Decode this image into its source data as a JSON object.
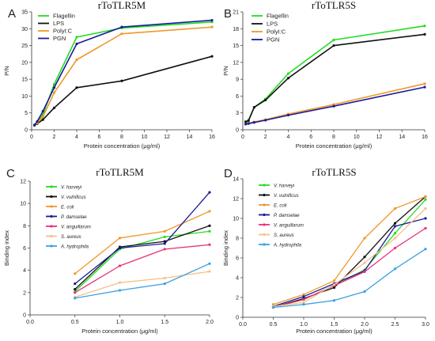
{
  "chart_data": [
    {
      "type": "line",
      "panel": "A",
      "title": "rToTLR5M",
      "xlabel": "Protein concentration (μg/ml)",
      "ylabel": "P/N",
      "xlim": [
        0,
        16
      ],
      "ylim": [
        0,
        35
      ],
      "xticks": [
        0,
        2,
        4,
        6,
        8,
        10,
        12,
        14,
        16
      ],
      "yticks": [
        0,
        5,
        10,
        15,
        20,
        25,
        30,
        35
      ],
      "legend_position": "top-left",
      "colors": {
        "Flagellin": "#22dd22",
        "LPS": "#111111",
        "PolyI:C": "#f0982a",
        "PGN": "#1a1a9a"
      },
      "x": [
        0.25,
        0.5,
        1,
        2,
        4,
        8,
        16
      ],
      "series": [
        {
          "name": "Flagellin",
          "values": [
            1.5,
            2.3,
            4.5,
            13.5,
            27.5,
            30.2,
            32.0
          ]
        },
        {
          "name": "LPS",
          "values": [
            1.3,
            1.8,
            3.0,
            6.5,
            12.5,
            14.5,
            21.8
          ]
        },
        {
          "name": "PolyI:C",
          "values": [
            1.4,
            2.0,
            3.8,
            11.0,
            20.8,
            28.5,
            30.5
          ]
        },
        {
          "name": "PGN",
          "values": [
            1.4,
            2.5,
            5.5,
            12.5,
            25.5,
            30.5,
            32.5
          ]
        }
      ]
    },
    {
      "type": "line",
      "panel": "B",
      "title": "rToTLR5S",
      "xlabel": "Protein concentration (μg/ml)",
      "ylabel": "P/N",
      "xlim": [
        0,
        16
      ],
      "ylim": [
        0,
        21
      ],
      "xticks": [
        0,
        2,
        4,
        6,
        8,
        10,
        12,
        14,
        16
      ],
      "yticks": [
        0,
        3,
        6,
        9,
        12,
        15,
        18,
        21
      ],
      "legend_position": "top-left",
      "colors": {
        "Flagellin": "#22dd22",
        "LPS": "#111111",
        "PolyI:C": "#f0982a",
        "PGN": "#1a1a9a"
      },
      "x": [
        0.25,
        0.5,
        1,
        2,
        4,
        8,
        16
      ],
      "series": [
        {
          "name": "Flagellin",
          "values": [
            1.5,
            1.7,
            4.0,
            5.5,
            10.0,
            16.0,
            18.5
          ]
        },
        {
          "name": "LPS",
          "values": [
            1.4,
            1.6,
            4.0,
            5.3,
            9.2,
            15.0,
            17.0
          ]
        },
        {
          "name": "PolyI:C",
          "values": [
            1.0,
            1.2,
            1.4,
            1.8,
            2.8,
            4.5,
            8.2
          ]
        },
        {
          "name": "PGN",
          "values": [
            1.0,
            1.1,
            1.3,
            1.7,
            2.6,
            4.2,
            7.6
          ]
        }
      ]
    },
    {
      "type": "line",
      "panel": "C",
      "title": "rToTLR5M",
      "xlabel": "Protein concentration (μg/ml)",
      "ylabel": "Binding index",
      "xlim": [
        0,
        2.0
      ],
      "ylim": [
        0,
        12
      ],
      "xticks": [
        0.0,
        0.5,
        1.0,
        1.5,
        2.0
      ],
      "yticks": [
        0,
        2,
        4,
        6,
        8,
        10,
        12
      ],
      "legend_position": "top-left",
      "colors": {
        "V. harveyi": "#22dd22",
        "V. vulnificus": "#111111",
        "E. coli": "#f0982a",
        "P. damselae": "#1a1a9a",
        "V. anguillarum": "#e8307a",
        "S. aureus": "#f5c08a",
        "A. hydrophila": "#3aa0e0"
      },
      "x": [
        0.5,
        1.0,
        1.5,
        2.0
      ],
      "series": [
        {
          "name": "V. harveyi",
          "values": [
            2.1,
            5.9,
            7.0,
            7.5
          ]
        },
        {
          "name": "V. vulnificus",
          "values": [
            2.3,
            6.1,
            6.6,
            8.0
          ]
        },
        {
          "name": "E. coli",
          "values": [
            3.7,
            6.9,
            7.5,
            9.3
          ]
        },
        {
          "name": "P. damselae",
          "values": [
            2.8,
            6.0,
            6.4,
            11.0
          ]
        },
        {
          "name": "V. anguillarum",
          "values": [
            2.0,
            4.4,
            5.9,
            6.3
          ]
        },
        {
          "name": "S. aureus",
          "values": [
            1.6,
            2.9,
            3.3,
            3.9
          ]
        },
        {
          "name": "A. hydrophila",
          "values": [
            1.5,
            2.2,
            2.8,
            4.6
          ]
        }
      ]
    },
    {
      "type": "line",
      "panel": "D",
      "title": "rToTLR5S",
      "xlabel": "Protein concentration (μg/ml)",
      "ylabel": "Binding index",
      "xlim": [
        0,
        3.0
      ],
      "ylim": [
        0,
        14
      ],
      "xticks": [
        0.0,
        0.5,
        1.0,
        1.5,
        2.0,
        2.5,
        3.0
      ],
      "yticks": [
        0,
        2,
        4,
        6,
        8,
        10,
        12,
        14
      ],
      "legend_position": "top-left",
      "colors": {
        "V. harveyi": "#22dd22",
        "V. vulnificus": "#111111",
        "E. coli": "#f0982a",
        "P. damselae": "#1a1a9a",
        "V. anguillarum": "#e8307a",
        "S. aureus": "#f5c08a",
        "A. hydrophila": "#3aa0e0"
      },
      "x": [
        0.5,
        1.0,
        1.5,
        2.0,
        2.5,
        3.0
      ],
      "series": [
        {
          "name": "V. harveyi",
          "values": [
            1.0,
            1.8,
            3.2,
            4.8,
            8.5,
            11.9
          ]
        },
        {
          "name": "V. vulnificus",
          "values": [
            1.0,
            1.9,
            3.0,
            6.1,
            9.5,
            12.2
          ]
        },
        {
          "name": "E. coli",
          "values": [
            1.3,
            2.3,
            3.7,
            8.0,
            11.0,
            12.2
          ]
        },
        {
          "name": "P. damselae",
          "values": [
            1.1,
            2.1,
            3.4,
            4.7,
            9.2,
            10.0
          ]
        },
        {
          "name": "V. anguillarum",
          "values": [
            1.0,
            1.8,
            3.2,
            4.6,
            7.0,
            9.0
          ]
        },
        {
          "name": "S. aureus",
          "values": [
            1.1,
            1.5,
            3.3,
            5.5,
            8.0,
            11.0
          ]
        },
        {
          "name": "A. hydrophila",
          "values": [
            1.0,
            1.3,
            1.7,
            2.6,
            4.9,
            6.9
          ]
        }
      ]
    }
  ]
}
